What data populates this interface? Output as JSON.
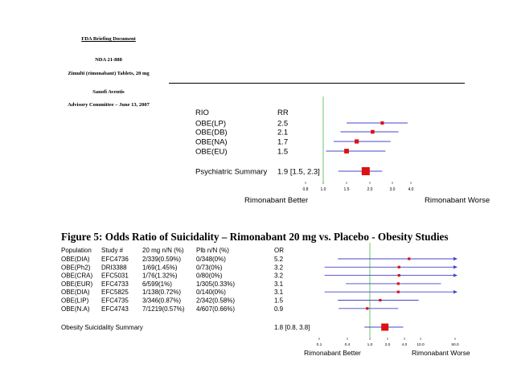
{
  "header": {
    "line1": "FDA Briefing Document",
    "line2": "NDA 21-888",
    "line3": "Zimulti (rimonabant) Tablets, 20 mg",
    "line4": "Sanofi Aventis",
    "line5": "Advisory Committee – June 13, 2007"
  },
  "colors": {
    "marker": "#dd1111",
    "ci_line": "#4444cc",
    "ref_line": "#44bb44",
    "text": "#000000"
  },
  "chart_data": [
    {
      "type": "forest",
      "col_headers": {
        "group": "RIO",
        "effect": "RR"
      },
      "rows": [
        {
          "label": "OBE(LP)",
          "value_text": "2.5",
          "rr": 2.5,
          "lo": 1.5,
          "hi": 3.8
        },
        {
          "label": "OBE(DB)",
          "value_text": "2.1",
          "rr": 2.1,
          "lo": 1.35,
          "hi": 3.3
        },
        {
          "label": "OBE(NA)",
          "value_text": "1.7",
          "rr": 1.7,
          "lo": 1.2,
          "hi": 2.9
        },
        {
          "label": "OBE(EU)",
          "value_text": "1.5",
          "rr": 1.5,
          "lo": 1.05,
          "hi": 2.65
        }
      ],
      "summary": {
        "label": "Psychiatric Summary",
        "value_text": "1.9  [1.5, 2.3]",
        "rr": 1.9,
        "lo": 1.5,
        "hi": 2.3
      },
      "ticks": [
        "0.8",
        "1.0",
        "1.5",
        "2.0",
        "3.0",
        "4.0"
      ],
      "tick_values": [
        0.8,
        1.0,
        1.5,
        2.0,
        3.0,
        4.0
      ],
      "xlim": [
        0.8,
        4.0
      ],
      "ref": 1.0,
      "xlabel_left": "Rimonabant Better",
      "xlabel_right": "Rimonabant Worse"
    },
    {
      "type": "forest",
      "title": "Figure 5: Odds Ratio of Suicidality – Rimonabant 20 mg vs. Placebo - Obesity Studies",
      "col_headers": [
        "Population",
        "Study #",
        "20 mg n/N (%)",
        "Plb n/N (%)",
        "OR"
      ],
      "rows": [
        {
          "population": "OBE(DIA)",
          "study": "EFC4736",
          "drug": "2/339(0.59%)",
          "placebo": "0/348(0%)",
          "or_text": "5.2",
          "or": 5.2,
          "lo": 0.25,
          "hi": 100,
          "arrow": true
        },
        {
          "population": "OBE(Ph2)",
          "study": "DRI3388",
          "drug": "1/69(1.45%)",
          "placebo": "0/73(0%)",
          "or_text": "3.2",
          "or": 3.2,
          "lo": 0.13,
          "hi": 100,
          "arrow": true
        },
        {
          "population": "OBE(CRA)",
          "study": "EFC5031",
          "drug": "1/76(1.32%)",
          "placebo": "0/80(0%)",
          "or_text": "3.2",
          "or": 3.2,
          "lo": 0.13,
          "hi": 100,
          "arrow": true
        },
        {
          "population": "OBE(EUR)",
          "study": "EFC4733",
          "drug": "6/599(1%)",
          "placebo": "1/305(0.33%)",
          "or_text": "3.1",
          "or": 3.1,
          "lo": 0.37,
          "hi": 26
        },
        {
          "population": "OBE(DIA)",
          "study": "EFC5825",
          "drug": "1/138(0.72%)",
          "placebo": "0/140(0%)",
          "or_text": "3.1",
          "or": 3.1,
          "lo": 0.13,
          "hi": 100,
          "arrow": true
        },
        {
          "population": "OBE(LIP)",
          "study": "EFC4735",
          "drug": "3/346(0.87%)",
          "placebo": "2/342(0.58%)",
          "or_text": "1.5",
          "or": 1.5,
          "lo": 0.25,
          "hi": 9
        },
        {
          "population": "OBE(N.A)",
          "study": "EFC4743",
          "drug": "7/1219(0.57%)",
          "placebo": "4/607(0.66%)",
          "or_text": "0.9",
          "or": 0.9,
          "lo": 0.26,
          "hi": 3.1
        }
      ],
      "summary": {
        "label": "Obesity Suicidality Summary",
        "value_text": "1.8  [0.8, 3.8]",
        "or": 1.8,
        "lo": 0.8,
        "hi": 3.8
      },
      "ticks": [
        "0.1",
        "0.4",
        "1.0",
        "2.0",
        "4.0",
        "10.0",
        "50.0"
      ],
      "tick_values": [
        0.1,
        0.4,
        1.0,
        2.0,
        4.0,
        10.0,
        50.0
      ],
      "xlim": [
        0.1,
        50.0
      ],
      "ref": 1.0,
      "xlabel_left": "Rimonabant  Better",
      "xlabel_right": "Rimonabant Worse"
    }
  ]
}
